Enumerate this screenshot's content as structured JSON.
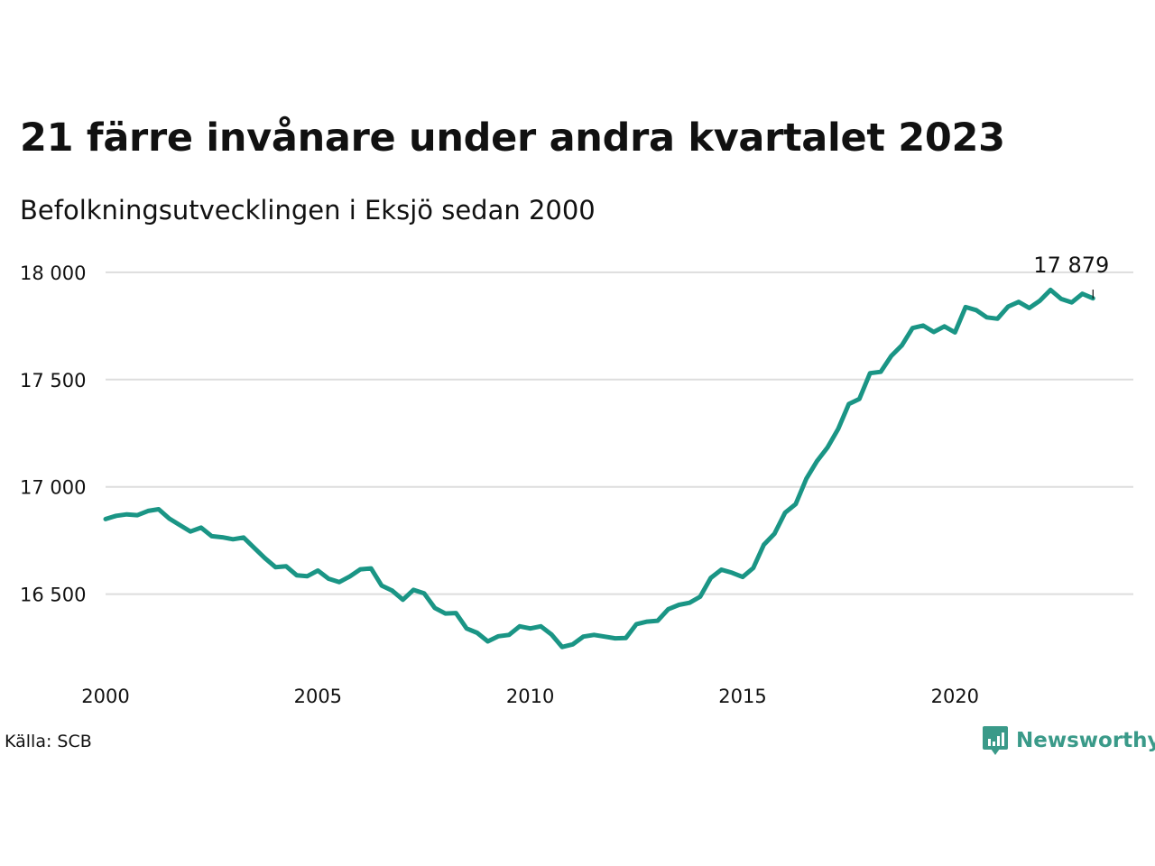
{
  "title": "21 färre invånare under andra kvartalet 2023",
  "subtitle": "Befolkningsutvecklingen i Eksjö sedan 2000",
  "source": "Källa: SCB",
  "brand": {
    "name": "Newsworthy",
    "color": "#3a9a89",
    "icon": "bar-chart-icon"
  },
  "colors": {
    "line": "#1a9585",
    "grid": "#dddddd",
    "text": "#111111"
  },
  "chart_data": {
    "type": "line",
    "title": "21 färre invånare under andra kvartalet 2023",
    "subtitle": "Befolkningsutvecklingen i Eksjö sedan 2000",
    "xlabel": "",
    "ylabel": "",
    "xlim": [
      2000,
      2024.2
    ],
    "ylim": [
      16200,
      18050
    ],
    "x_ticks": [
      {
        "value": 2000,
        "label": "2000"
      },
      {
        "value": 2005,
        "label": "2005"
      },
      {
        "value": 2010,
        "label": "2010"
      },
      {
        "value": 2015,
        "label": "2015"
      },
      {
        "value": 2020,
        "label": "2020"
      }
    ],
    "y_ticks": [
      {
        "value": 16500,
        "label": "16 500"
      },
      {
        "value": 17000,
        "label": "17 000"
      },
      {
        "value": 17500,
        "label": "17 500"
      },
      {
        "value": 18000,
        "label": "18 000"
      }
    ],
    "grid": "horizontal",
    "end_label": "17 879",
    "series": [
      {
        "x_start": 2000.0,
        "x_step": 0.25,
        "values": [
          16850,
          16865,
          16872,
          16868,
          16888,
          16896,
          16852,
          16822,
          16792,
          16810,
          16770,
          16765,
          16756,
          16764,
          16716,
          16668,
          16626,
          16630,
          16588,
          16584,
          16610,
          16572,
          16556,
          16582,
          16616,
          16620,
          16540,
          16516,
          16474,
          16520,
          16504,
          16436,
          16410,
          16412,
          16340,
          16320,
          16280,
          16304,
          16310,
          16350,
          16340,
          16350,
          16312,
          16254,
          16266,
          16302,
          16310,
          16302,
          16294,
          16296,
          16360,
          16372,
          16376,
          16430,
          16450,
          16460,
          16488,
          16576,
          16614,
          16600,
          16580,
          16622,
          16730,
          16782,
          16880,
          16920,
          17038,
          17120,
          17184,
          17270,
          17386,
          17410,
          17530,
          17536,
          17610,
          17660,
          17740,
          17752,
          17722,
          17748,
          17720,
          17838,
          17824,
          17790,
          17784,
          17840,
          17862,
          17834,
          17868,
          17918,
          17876,
          17860,
          17900,
          17879
        ]
      }
    ]
  }
}
